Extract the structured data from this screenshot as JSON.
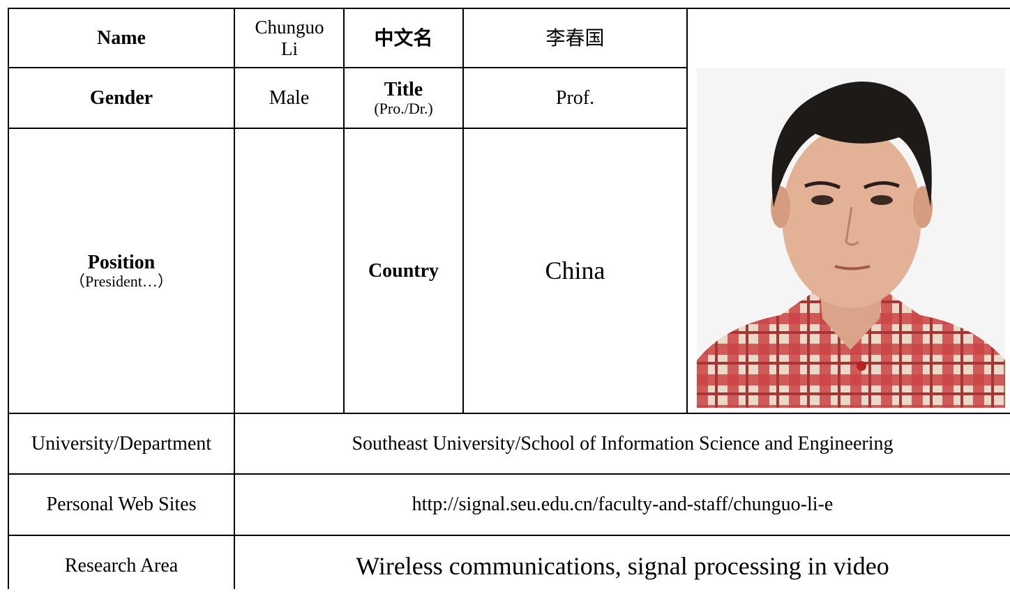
{
  "table": {
    "name_label": "Name",
    "name_value": "Chunguo Li",
    "cn_label": "中文名",
    "cn_value": "李春国",
    "gender_label": "Gender",
    "gender_value": "Male",
    "title_label": "Title",
    "title_hint": "(Pro./Dr.)",
    "title_value": "Prof.",
    "position_label": "Position",
    "position_hint": "（President…）",
    "country_label": "Country",
    "country_value": "China",
    "university_label": "University/Department",
    "university_value": "Southeast University/School of Information Science and Engineering",
    "web_label": "Personal Web Sites",
    "web_value": "http://signal.seu.edu.cn/faculty-and-staff/chunguo-li-e",
    "research_label": "Research Area",
    "research_value": "Wireless communications, signal processing in video"
  }
}
